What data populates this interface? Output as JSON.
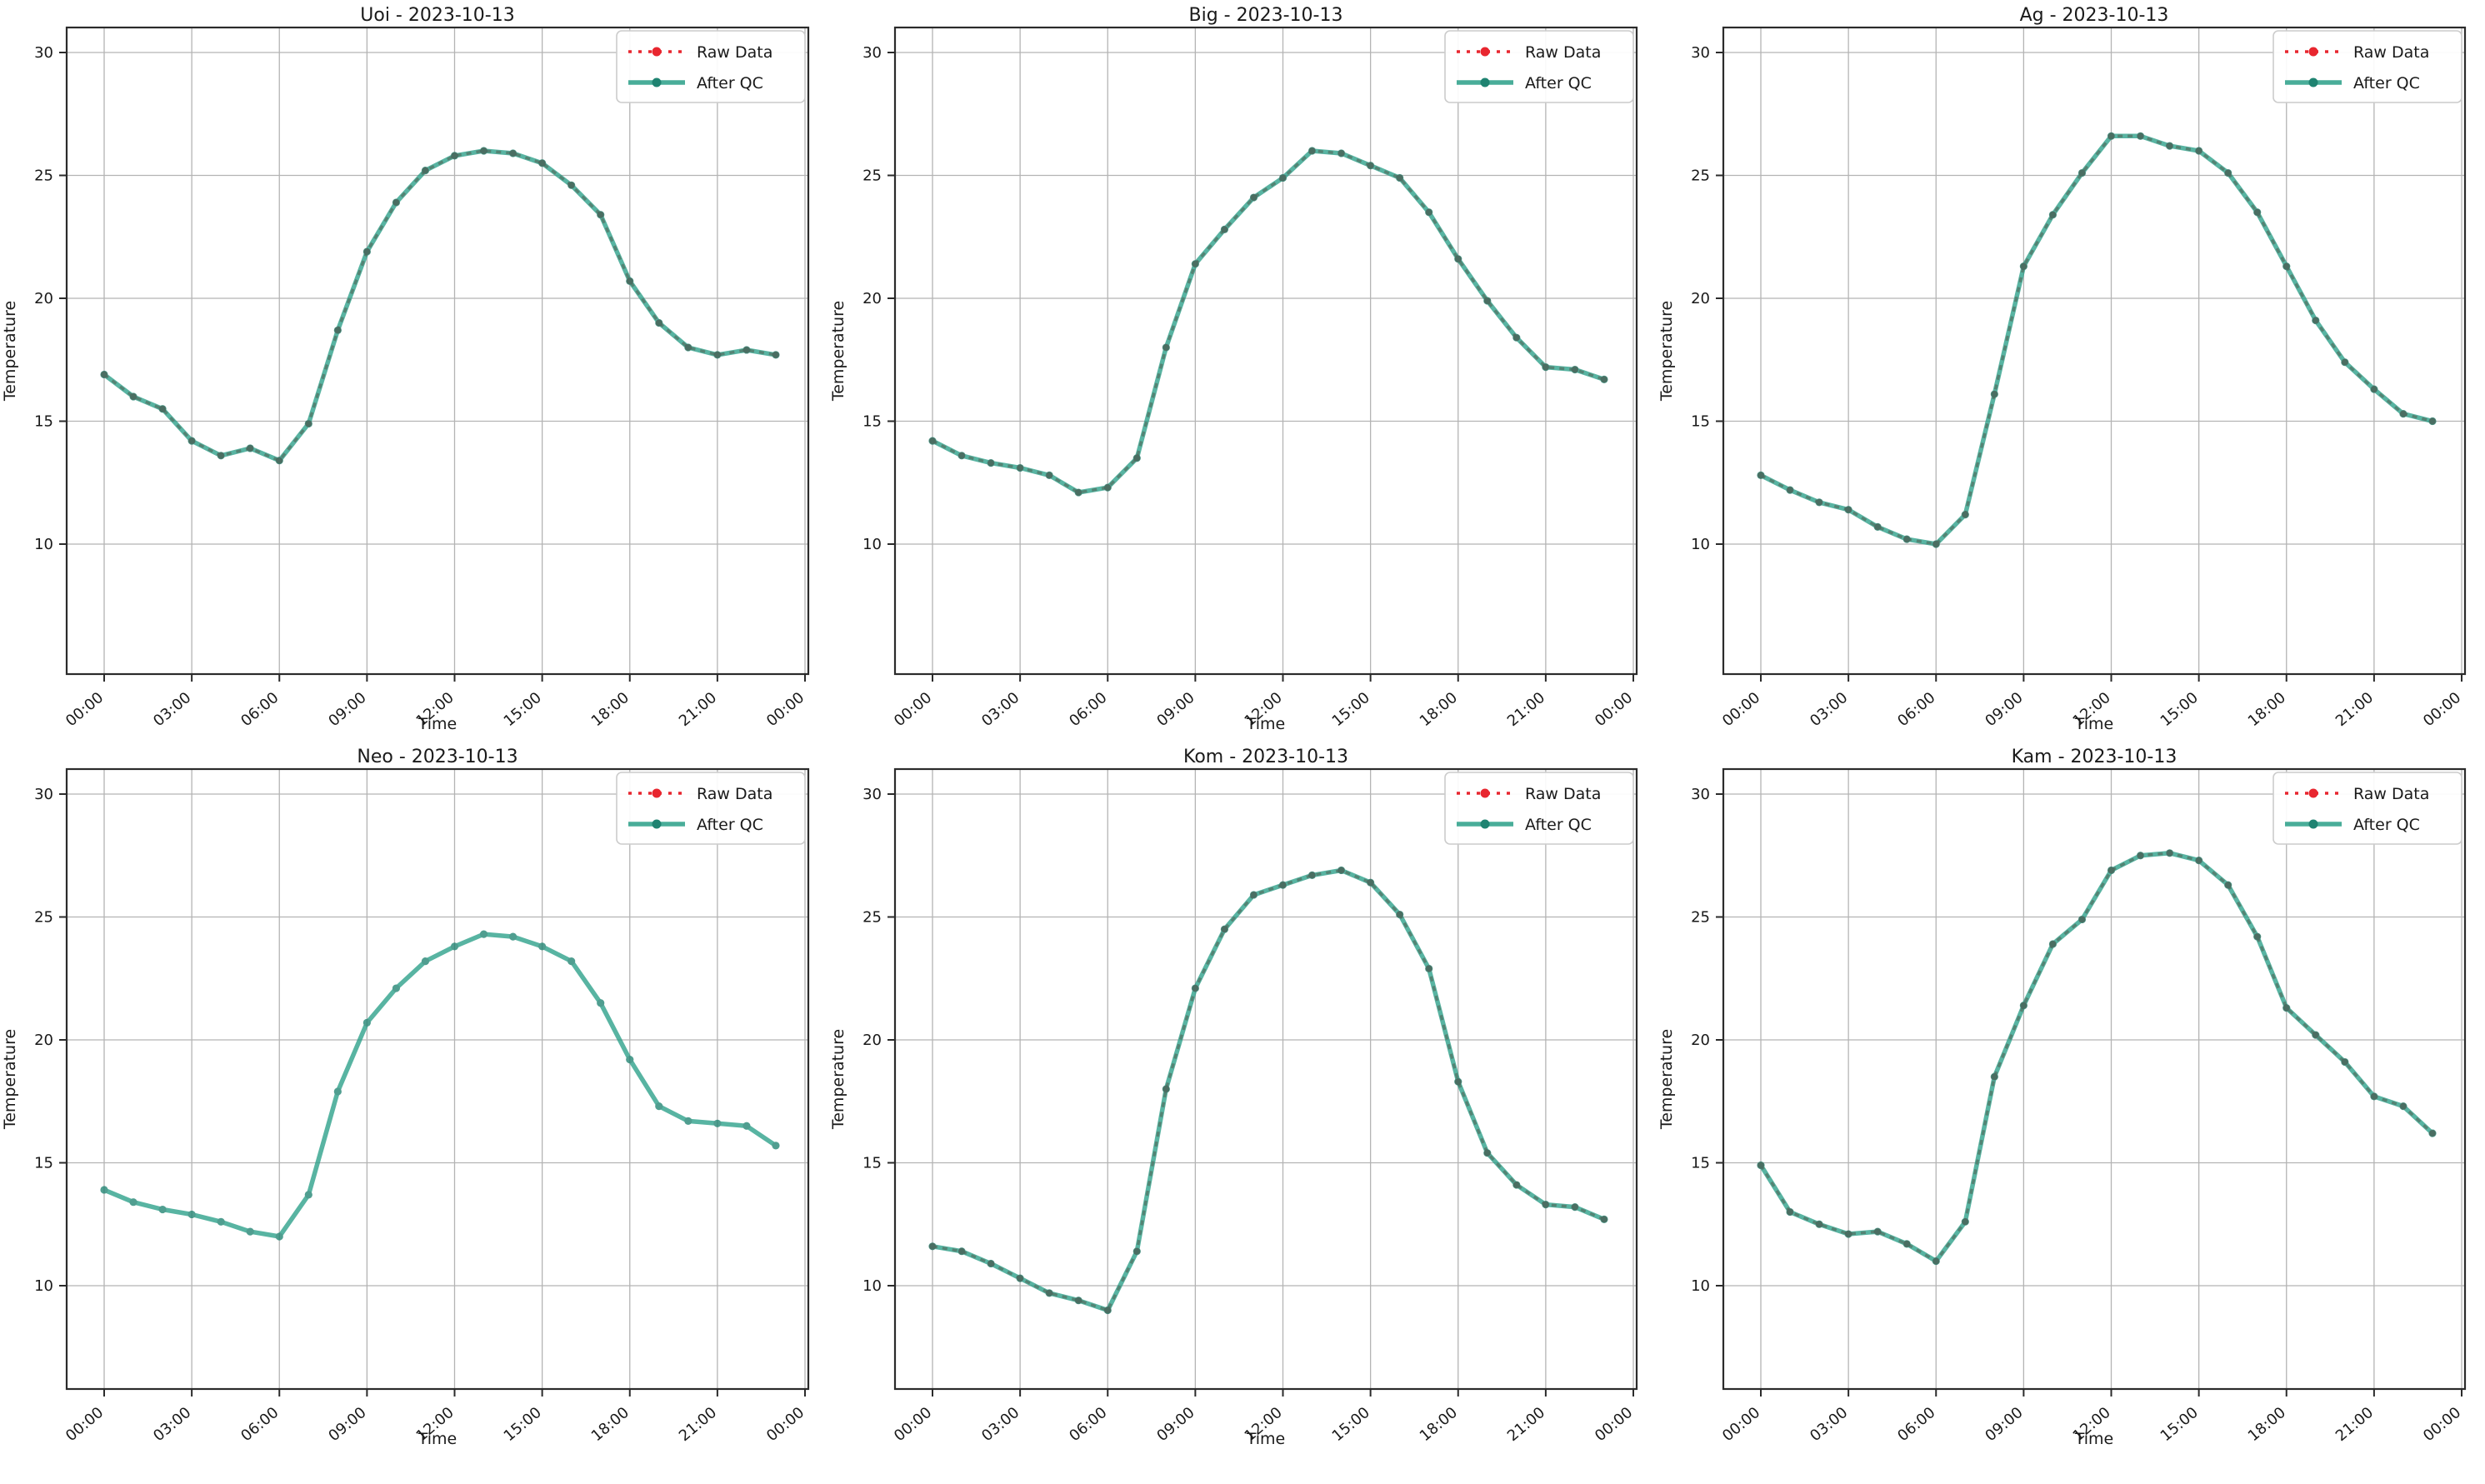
{
  "page": {
    "background": "#ffffff",
    "layout": "2x3 subplot grid of temperature QC line charts"
  },
  "colors": {
    "qc_line": "#2a9f88",
    "qc_marker": "#1f8371",
    "raw_line": "#e8262f",
    "grid": "#b4b4b4",
    "spine": "#2b2b2b",
    "text": "#1a1a1a",
    "legend_border": "#cccccc",
    "legend_bg": "#ffffff"
  },
  "legend": {
    "raw_label": "Raw Data",
    "qc_label": "After QC",
    "position": "upper right"
  },
  "axes": {
    "x_label": "Time",
    "y_label": "Temperature",
    "x_tick_labels": [
      "00:00",
      "03:00",
      "06:00",
      "09:00",
      "12:00",
      "15:00",
      "18:00",
      "21:00",
      "00:00"
    ],
    "x_tick_hours": [
      0,
      3,
      6,
      9,
      12,
      15,
      18,
      21,
      24
    ],
    "y_ticks": [
      10,
      15,
      20,
      25,
      30
    ],
    "grid": true,
    "x_tick_rotation_deg": -40
  },
  "chart_data": [
    {
      "type": "line",
      "title": "Uoi - 2023-10-13",
      "station": "Uoi",
      "date": "2023-10-13",
      "xlabel": "Time",
      "ylabel": "Temperature",
      "x_hours": [
        0,
        1,
        2,
        3,
        4,
        5,
        6,
        7,
        8,
        9,
        10,
        11,
        12,
        13,
        14,
        15,
        16,
        17,
        18,
        19,
        20,
        21,
        22,
        23
      ],
      "series": [
        {
          "name": "Raw Data",
          "visible": true,
          "same_as_qc": true
        },
        {
          "name": "After QC",
          "values": [
            16.9,
            16.0,
            15.5,
            14.2,
            13.6,
            13.9,
            13.4,
            14.9,
            18.7,
            21.9,
            23.9,
            25.2,
            25.8,
            26.0,
            25.9,
            25.5,
            24.6,
            23.4,
            20.7,
            19.0,
            18.0,
            17.7,
            17.9,
            17.7
          ]
        }
      ],
      "ylim": [
        4.7,
        31.0
      ]
    },
    {
      "type": "line",
      "title": "Big - 2023-10-13",
      "station": "Big",
      "date": "2023-10-13",
      "xlabel": "Time",
      "ylabel": "Temperature",
      "x_hours": [
        0,
        1,
        2,
        3,
        4,
        5,
        6,
        7,
        8,
        9,
        10,
        11,
        12,
        13,
        14,
        15,
        16,
        17,
        18,
        19,
        20,
        21,
        22,
        23
      ],
      "series": [
        {
          "name": "Raw Data",
          "visible": true,
          "same_as_qc": true
        },
        {
          "name": "After QC",
          "values": [
            14.2,
            13.6,
            13.3,
            13.1,
            12.8,
            12.1,
            12.3,
            13.5,
            18.0,
            21.4,
            22.8,
            24.1,
            24.9,
            26.0,
            25.9,
            25.4,
            24.9,
            23.5,
            21.6,
            19.9,
            18.4,
            17.2,
            17.1,
            16.7
          ]
        }
      ],
      "ylim": [
        4.7,
        31.0
      ]
    },
    {
      "type": "line",
      "title": "Ag - 2023-10-13",
      "station": "Ag",
      "date": "2023-10-13",
      "xlabel": "Time",
      "ylabel": "Temperature",
      "x_hours": [
        0,
        1,
        2,
        3,
        4,
        5,
        6,
        7,
        8,
        9,
        10,
        11,
        12,
        13,
        14,
        15,
        16,
        17,
        18,
        19,
        20,
        21,
        22,
        23
      ],
      "series": [
        {
          "name": "Raw Data",
          "visible": true,
          "same_as_qc": true
        },
        {
          "name": "After QC",
          "values": [
            12.8,
            12.2,
            11.7,
            11.4,
            10.7,
            10.2,
            10.0,
            11.2,
            16.1,
            21.3,
            23.4,
            25.1,
            26.6,
            26.6,
            26.2,
            26.0,
            25.1,
            23.5,
            21.3,
            19.1,
            17.4,
            16.3,
            15.3,
            15.0
          ]
        }
      ],
      "ylim": [
        4.7,
        31.0
      ]
    },
    {
      "type": "line",
      "title": "Neo - 2023-10-13",
      "station": "Neo",
      "date": "2023-10-13",
      "xlabel": "Time",
      "ylabel": "Temperature",
      "x_hours": [
        0,
        1,
        2,
        3,
        4,
        5,
        6,
        7,
        8,
        9,
        10,
        11,
        12,
        13,
        14,
        15,
        16,
        17,
        18,
        19,
        20,
        21,
        22,
        23
      ],
      "series": [
        {
          "name": "Raw Data",
          "visible": false,
          "same_as_qc": false
        },
        {
          "name": "After QC",
          "values": [
            13.9,
            13.4,
            13.1,
            12.9,
            12.6,
            12.2,
            12.0,
            13.7,
            17.9,
            20.7,
            22.1,
            23.2,
            23.8,
            24.3,
            24.2,
            23.8,
            23.2,
            21.5,
            19.2,
            17.3,
            16.7,
            16.6,
            16.5,
            15.7
          ]
        }
      ],
      "ylim": [
        5.8,
        31.0
      ]
    },
    {
      "type": "line",
      "title": "Kom - 2023-10-13",
      "station": "Kom",
      "date": "2023-10-13",
      "xlabel": "Time",
      "ylabel": "Temperature",
      "x_hours": [
        0,
        1,
        2,
        3,
        4,
        5,
        6,
        7,
        8,
        9,
        10,
        11,
        12,
        13,
        14,
        15,
        16,
        17,
        18,
        19,
        20,
        21,
        22,
        23
      ],
      "series": [
        {
          "name": "Raw Data",
          "visible": true,
          "same_as_qc": true
        },
        {
          "name": "After QC",
          "values": [
            11.6,
            11.4,
            10.9,
            10.3,
            9.7,
            9.4,
            9.0,
            11.4,
            18.0,
            22.1,
            24.5,
            25.9,
            26.3,
            26.7,
            26.9,
            26.4,
            25.1,
            22.9,
            18.3,
            15.4,
            14.1,
            13.3,
            13.2,
            12.7
          ]
        }
      ],
      "ylim": [
        5.8,
        31.0
      ]
    },
    {
      "type": "line",
      "title": "Kam - 2023-10-13",
      "station": "Kam",
      "date": "2023-10-13",
      "xlabel": "Time",
      "ylabel": "Temperature",
      "x_hours": [
        0,
        1,
        2,
        3,
        4,
        5,
        6,
        7,
        8,
        9,
        10,
        11,
        12,
        13,
        14,
        15,
        16,
        17,
        18,
        19,
        20,
        21,
        22,
        23
      ],
      "series": [
        {
          "name": "Raw Data",
          "visible": true,
          "same_as_qc": true
        },
        {
          "name": "After QC",
          "values": [
            14.9,
            13.0,
            12.5,
            12.1,
            12.2,
            11.7,
            11.0,
            12.6,
            18.5,
            21.4,
            23.9,
            24.9,
            26.9,
            27.5,
            27.6,
            27.3,
            26.3,
            24.2,
            21.3,
            20.2,
            19.1,
            17.7,
            17.3,
            16.2
          ]
        }
      ],
      "ylim": [
        5.8,
        31.0
      ]
    }
  ]
}
